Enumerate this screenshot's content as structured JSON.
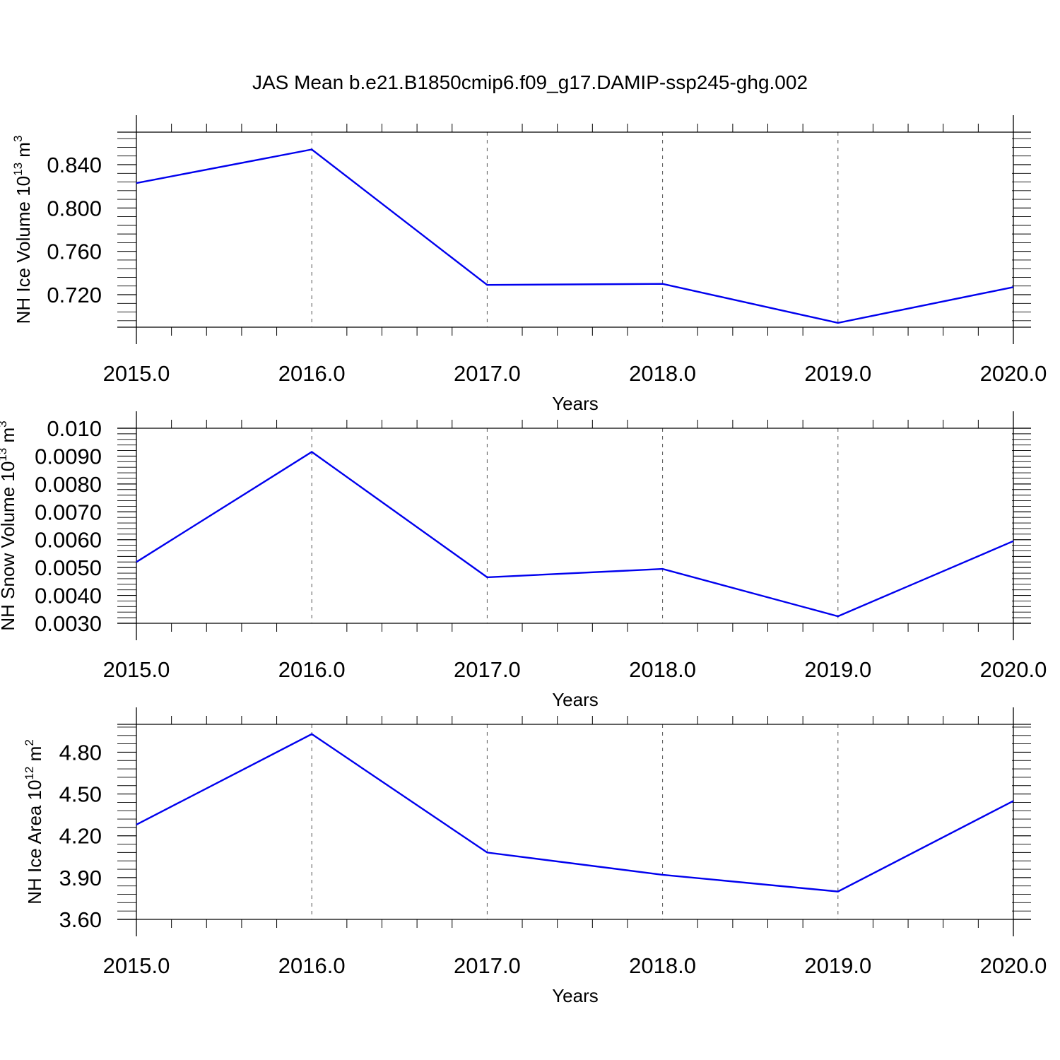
{
  "figure": {
    "title": "JAS Mean b.e21.B1850cmip6.f09_g17.DAMIP-ssp245-ghg.002",
    "line_color": "#0000ee",
    "grid_color": "#555555"
  },
  "chart_data": [
    {
      "type": "line",
      "title": "",
      "xlabel": "Years",
      "ylabel": {
        "text": "NH Ice Volume 10",
        "exponent": "13",
        "unit": " m",
        "unit_exponent": "3"
      },
      "x": [
        2015,
        2016,
        2017,
        2018,
        2019,
        2020
      ],
      "x_tick_labels": [
        "2015.0",
        "2016.0",
        "2017.0",
        "2018.0",
        "2019.0",
        "2020.0"
      ],
      "xlim": [
        2015,
        2020
      ],
      "ylim": [
        0.69,
        0.87
      ],
      "y_ticks": [
        0.72,
        0.76,
        0.8,
        0.84
      ],
      "y_tick_labels": [
        "0.720",
        "0.760",
        "0.800",
        "0.840"
      ],
      "y_minor_step": 0.008,
      "grid": "vertical dashed at major x ticks",
      "series": [
        {
          "values": [
            0.823,
            0.854,
            0.729,
            0.73,
            0.694,
            0.727
          ]
        }
      ]
    },
    {
      "type": "line",
      "title": "",
      "xlabel": "Years",
      "ylabel": {
        "text": "NH Snow Volume 10",
        "exponent": "13",
        "unit": " m",
        "unit_exponent": "3"
      },
      "x": [
        2015,
        2016,
        2017,
        2018,
        2019,
        2020
      ],
      "x_tick_labels": [
        "2015.0",
        "2016.0",
        "2017.0",
        "2018.0",
        "2019.0",
        "2020.0"
      ],
      "xlim": [
        2015,
        2020
      ],
      "ylim": [
        0.003,
        0.01
      ],
      "y_ticks": [
        0.003,
        0.004,
        0.005,
        0.006,
        0.007,
        0.008,
        0.009,
        0.01
      ],
      "y_tick_labels": [
        "0.0030",
        "0.0040",
        "0.0050",
        "0.0060",
        "0.0070",
        "0.0080",
        "0.0090",
        "0.010"
      ],
      "y_minor_step": 0.0002,
      "grid": "vertical dashed at major x ticks",
      "series": [
        {
          "values": [
            0.0052,
            0.00915,
            0.00465,
            0.00495,
            0.00325,
            0.00595
          ]
        }
      ]
    },
    {
      "type": "line",
      "title": "",
      "xlabel": "Years",
      "ylabel": {
        "text": "NH Ice Area 10",
        "exponent": "12",
        "unit": " m",
        "unit_exponent": "2"
      },
      "x": [
        2015,
        2016,
        2017,
        2018,
        2019,
        2020
      ],
      "x_tick_labels": [
        "2015.0",
        "2016.0",
        "2017.0",
        "2018.0",
        "2019.0",
        "2020.0"
      ],
      "xlim": [
        2015,
        2020
      ],
      "ylim": [
        3.6,
        5.0
      ],
      "y_ticks": [
        3.6,
        3.9,
        4.2,
        4.5,
        4.8
      ],
      "y_tick_labels": [
        "3.60",
        "3.90",
        "4.20",
        "4.50",
        "4.80"
      ],
      "y_minor_step": 0.06,
      "grid": "vertical dashed at major x ticks",
      "series": [
        {
          "values": [
            4.28,
            4.93,
            4.08,
            3.92,
            3.8,
            4.45
          ]
        }
      ]
    }
  ]
}
